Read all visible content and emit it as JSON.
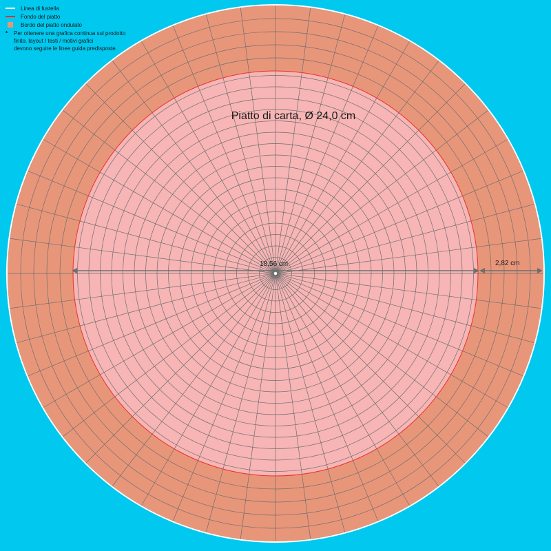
{
  "legend": {
    "items": [
      {
        "label": "Linea di fustella",
        "color": "#ffffff",
        "kind": "line"
      },
      {
        "label": "Fondo del piatto",
        "color": "#e8302a",
        "kind": "line"
      },
      {
        "label": "Bordo del piatto ondulato",
        "color": "#e8967a",
        "kind": "box"
      }
    ],
    "note_marker": "*",
    "note_lines": [
      "Per ottenere una grafica continua sul prodotto",
      "finito, layout / testi / motivi grafici",
      "devono seguire le linee guida predisposte."
    ]
  },
  "title": "Piatto di carta, Ø 24,0 cm",
  "dimensions": {
    "inner_diameter": "18,56 cm",
    "rim_width": "2,82 cm"
  },
  "colors": {
    "background": "#00c8ee",
    "rim_fill": "#e8967a",
    "bottom_fill": "#f7b5b5",
    "bottom_outline": "#e8302a",
    "cut_line": "#ffffff",
    "grid": "#6e6e6e",
    "dimension": "#6e6e6e"
  }
}
